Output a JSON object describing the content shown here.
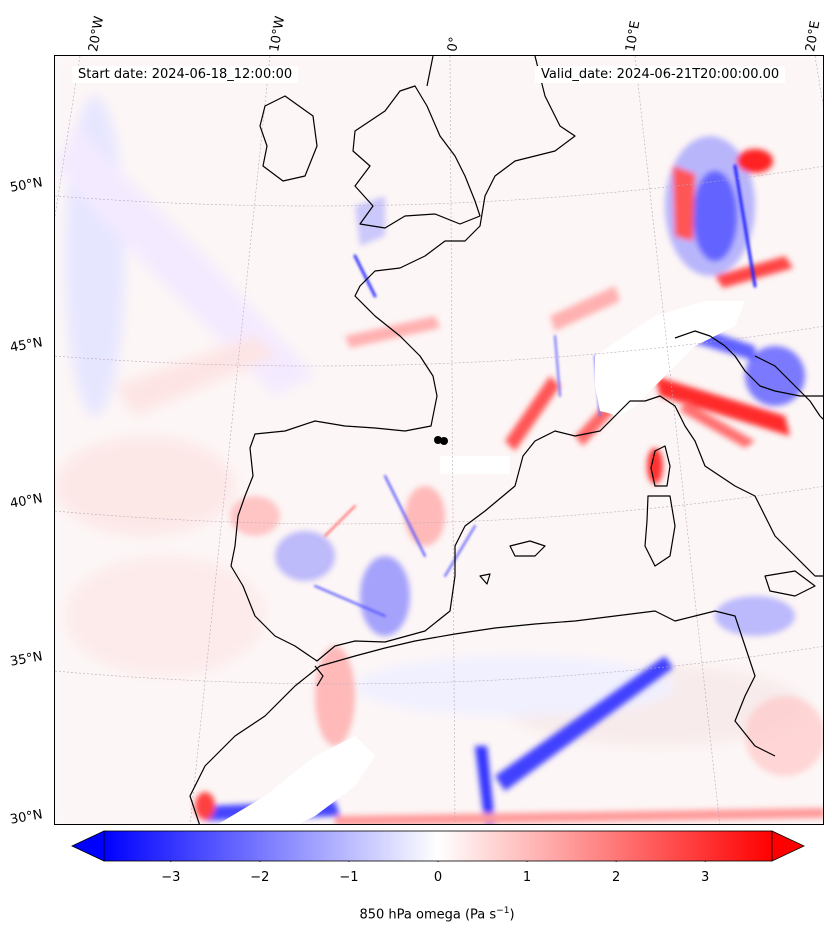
{
  "header": {
    "start_date": "Start date: 2024-06-18_12:00:00",
    "valid_date": "Valid_date: 2024-06-21T20:00:00.00"
  },
  "longitude_labels": [
    "20°W",
    "10°W",
    "0°",
    "10°E",
    "20°E"
  ],
  "latitude_labels": [
    "50°N",
    "45°N",
    "40°N",
    "35°N",
    "30°N"
  ],
  "colorbar": {
    "ticks": [
      "−3",
      "−2",
      "−1",
      "0",
      "1",
      "2",
      "3"
    ],
    "label": "850 hPa omega (Pa s",
    "label_exponent": "−1",
    "label_close": ")",
    "min": -3.75,
    "max": 3.75,
    "colors": {
      "negative": "#0000ff",
      "zero": "#ffffff",
      "positive": "#ff0000"
    }
  },
  "map": {
    "variable": "850 hPa omega",
    "coastline_color": "#000000",
    "gridline_color": "#b8a8b8"
  }
}
